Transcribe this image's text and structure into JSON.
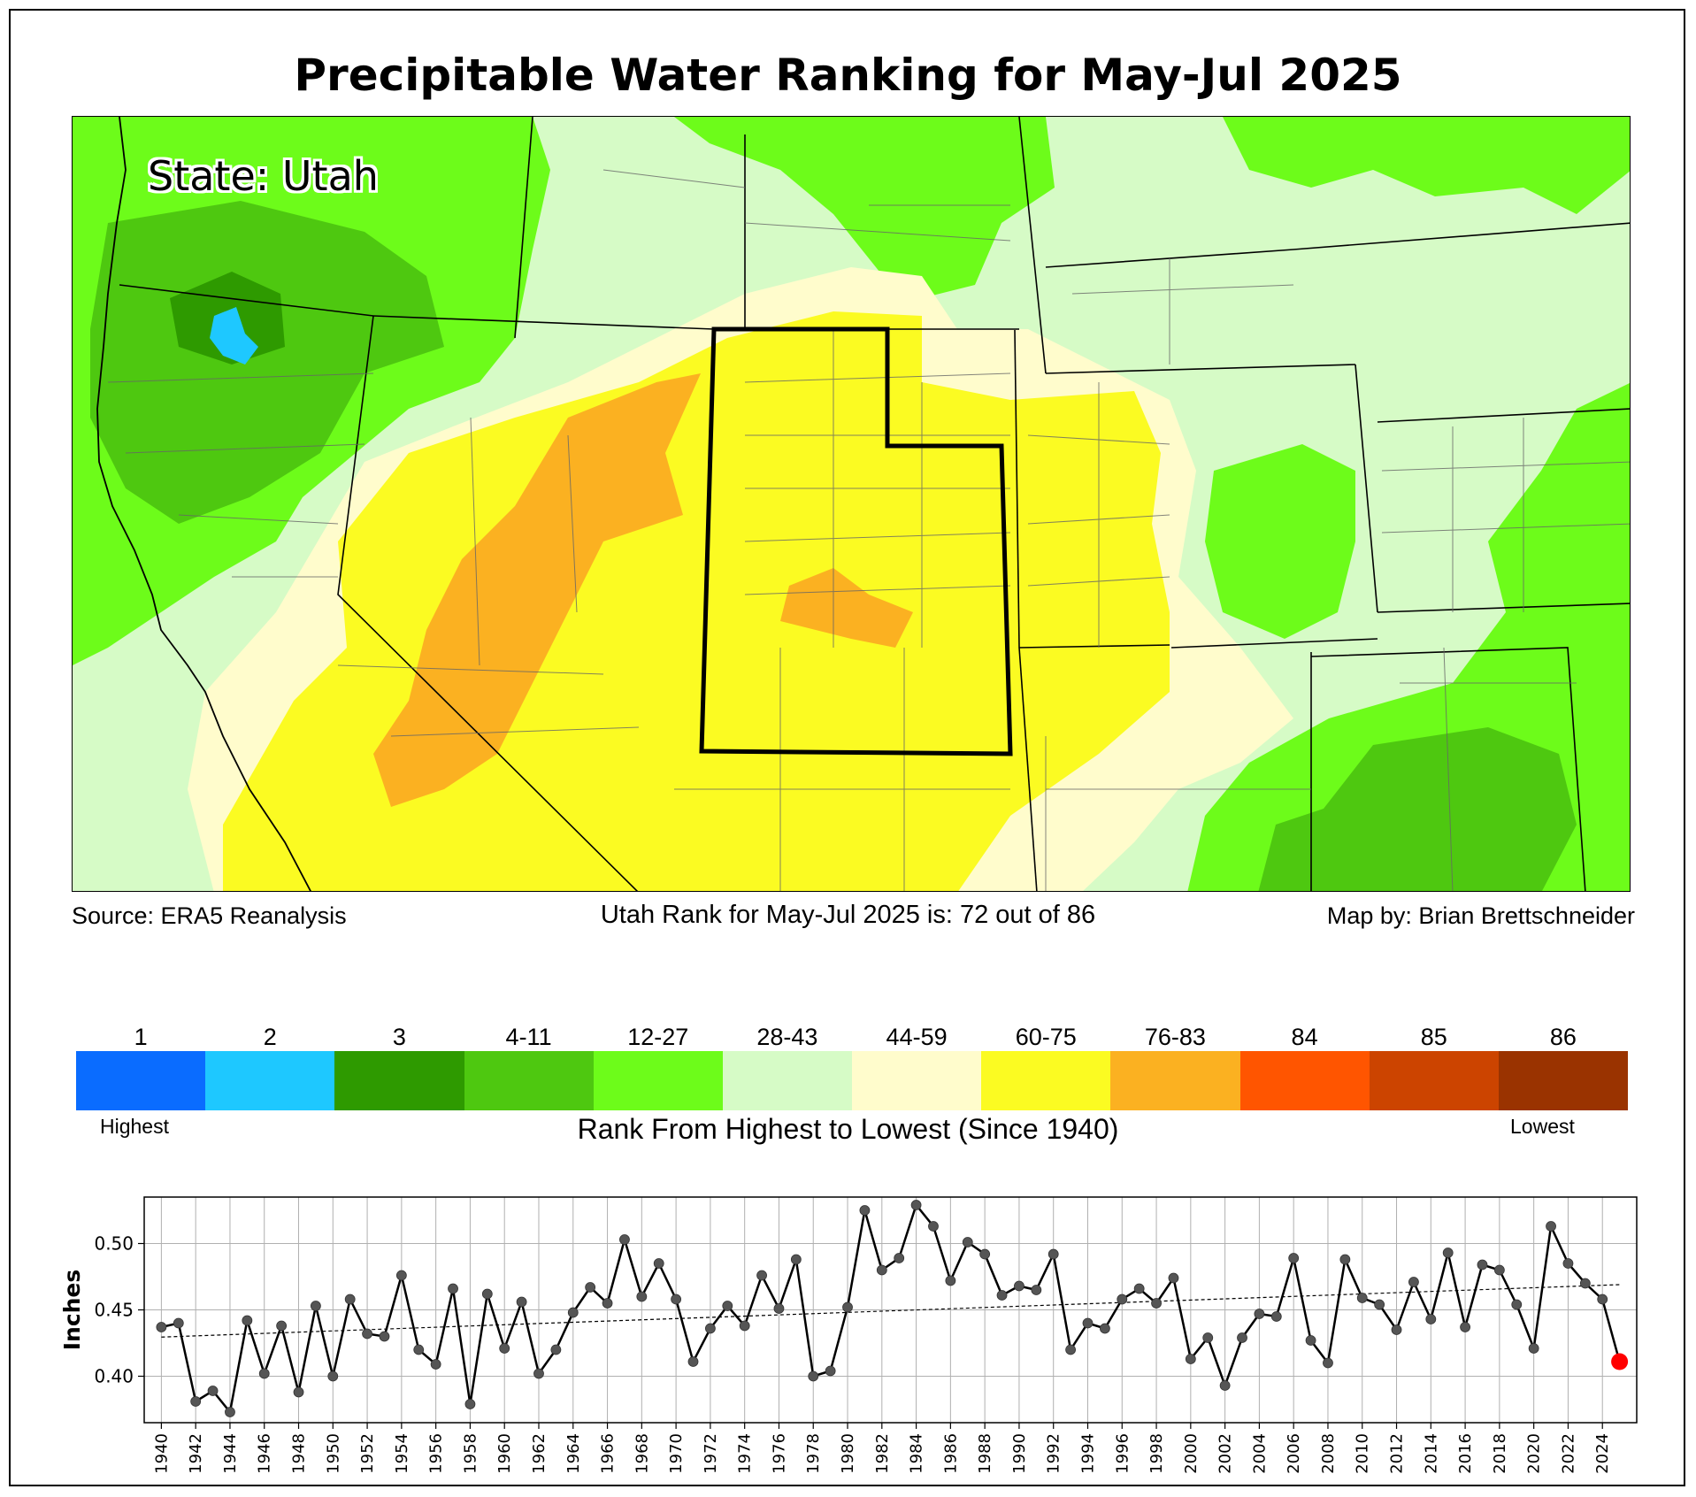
{
  "title": "Precipitable Water Ranking for May-Jul 2025",
  "map": {
    "state_label": "State: Utah",
    "colors": {
      "r1": "#0a6cff",
      "r2": "#1ec8ff",
      "r3": "#2e9a00",
      "r4_11": "#4ec810",
      "r12_27": "#6dfc1a",
      "r28_43": "#d6fbc6",
      "r44_59": "#fffccc",
      "r60_75": "#fbfb22",
      "r76_83": "#fbb121",
      "r84": "#ff5500",
      "r85": "#cc4400",
      "r86": "#9a3300"
    }
  },
  "footer": {
    "source": "Source: ERA5 Reanalysis",
    "rank_text": "Utah Rank for May-Jul 2025 is: 72 out of 86",
    "credit": "Map by: Brian Brettschneider"
  },
  "legend": {
    "labels": [
      "1",
      "2",
      "3",
      "4-11",
      "12-27",
      "28-43",
      "44-59",
      "60-75",
      "76-83",
      "84",
      "85",
      "86"
    ],
    "colors": [
      "#0a6cff",
      "#1ec8ff",
      "#2e9a00",
      "#4ec810",
      "#6dfc1a",
      "#d6fbc6",
      "#fffccc",
      "#fbfb22",
      "#fbb121",
      "#ff5500",
      "#cc4400",
      "#9a3300"
    ],
    "highest": "Highest",
    "lowest": "Lowest",
    "caption": "Rank From Highest to Lowest (Since 1940)"
  },
  "chart_data": {
    "type": "line",
    "ylabel": "Inches",
    "xlim": [
      1939,
      2026
    ],
    "ylim": [
      0.365,
      0.535
    ],
    "yticks": [
      0.4,
      0.45,
      0.5
    ],
    "ytick_labels": [
      "0.40",
      "0.45",
      "0.50"
    ],
    "xticks": [
      1940,
      1942,
      1944,
      1946,
      1948,
      1950,
      1952,
      1954,
      1956,
      1958,
      1960,
      1962,
      1964,
      1966,
      1968,
      1970,
      1972,
      1974,
      1976,
      1978,
      1980,
      1982,
      1984,
      1986,
      1988,
      1990,
      1992,
      1994,
      1996,
      1998,
      2000,
      2002,
      2004,
      2006,
      2008,
      2010,
      2012,
      2014,
      2016,
      2018,
      2020,
      2022,
      2024
    ],
    "grid": true,
    "series": [
      {
        "x": [
          1940,
          1941,
          1942,
          1943,
          1944,
          1945,
          1946,
          1947,
          1948,
          1949,
          1950,
          1951,
          1952,
          1953,
          1954,
          1955,
          1956,
          1957,
          1958,
          1959,
          1960,
          1961,
          1962,
          1963,
          1964,
          1965,
          1966,
          1967,
          1968,
          1969,
          1970,
          1971,
          1972,
          1973,
          1974,
          1975,
          1976,
          1977,
          1978,
          1979,
          1980,
          1981,
          1982,
          1983,
          1984,
          1985,
          1986,
          1987,
          1988,
          1989,
          1990,
          1991,
          1992,
          1993,
          1994,
          1995,
          1996,
          1997,
          1998,
          1999,
          2000,
          2001,
          2002,
          2003,
          2004,
          2005,
          2006,
          2007,
          2008,
          2009,
          2010,
          2011,
          2012,
          2013,
          2014,
          2015,
          2016,
          2017,
          2018,
          2019,
          2020,
          2021,
          2022,
          2023,
          2024,
          2025
        ],
        "values": [
          0.437,
          0.44,
          0.381,
          0.389,
          0.373,
          0.442,
          0.402,
          0.438,
          0.388,
          0.453,
          0.4,
          0.458,
          0.432,
          0.43,
          0.476,
          0.42,
          0.409,
          0.466,
          0.379,
          0.462,
          0.421,
          0.456,
          0.402,
          0.42,
          0.448,
          0.467,
          0.455,
          0.503,
          0.46,
          0.485,
          0.458,
          0.411,
          0.436,
          0.453,
          0.438,
          0.476,
          0.451,
          0.488,
          0.4,
          0.404,
          0.452,
          0.525,
          0.48,
          0.489,
          0.529,
          0.513,
          0.472,
          0.501,
          0.492,
          0.461,
          0.468,
          0.465,
          0.492,
          0.42,
          0.44,
          0.436,
          0.458,
          0.466,
          0.455,
          0.474,
          0.413,
          0.429,
          0.393,
          0.429,
          0.447,
          0.445,
          0.489,
          0.427,
          0.41,
          0.488,
          0.459,
          0.454,
          0.435,
          0.471,
          0.443,
          0.493,
          0.437,
          0.484,
          0.48,
          0.454,
          0.421,
          0.513,
          0.485,
          0.47,
          0.458,
          0.411
        ],
        "color": "#000000",
        "marker_color": "#555555"
      }
    ],
    "trend": {
      "x": [
        1940,
        2025
      ],
      "values": [
        0.4295,
        0.469
      ]
    },
    "highlight": {
      "x": 2025,
      "value": 0.411,
      "color": "#ff0000"
    }
  }
}
